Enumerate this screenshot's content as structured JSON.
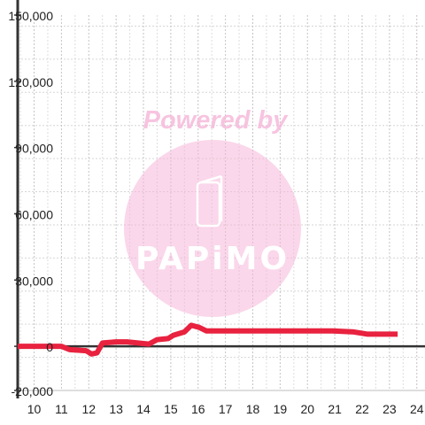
{
  "chart_data": {
    "type": "line",
    "title": "",
    "xlabel": "",
    "ylabel": "",
    "xlim": [
      9.4,
      24.3
    ],
    "ylim": [
      -20000,
      150000
    ],
    "x_ticks": [
      10,
      11,
      12,
      13,
      14,
      15,
      16,
      17,
      18,
      19,
      20,
      21,
      22,
      23,
      24
    ],
    "x_tick_labels": [
      "10",
      "11",
      "12",
      "13",
      "14",
      "15",
      "16",
      "17",
      "18",
      "19",
      "20",
      "21",
      "22",
      "23",
      "24"
    ],
    "y_ticks": [
      -20000,
      0,
      30000,
      60000,
      90000,
      120000,
      150000
    ],
    "y_tick_labels": [
      "-20,000",
      "0",
      "30,000",
      "60,000",
      "90,000",
      "120,000",
      "150,000"
    ],
    "grid": true,
    "legend": "none",
    "series": [
      {
        "color": "#e8223f",
        "points": [
          [
            9.4,
            0
          ],
          [
            11.0,
            0
          ],
          [
            11.3,
            -1500
          ],
          [
            11.9,
            -2000
          ],
          [
            12.1,
            -3500
          ],
          [
            12.3,
            -3000
          ],
          [
            12.5,
            1500
          ],
          [
            13.0,
            2000
          ],
          [
            13.4,
            2000
          ],
          [
            14.2,
            1000
          ],
          [
            14.5,
            3000
          ],
          [
            14.9,
            3500
          ],
          [
            15.1,
            5000
          ],
          [
            15.5,
            6500
          ],
          [
            15.75,
            9500
          ],
          [
            16.05,
            8500
          ],
          [
            16.3,
            7000
          ],
          [
            17.0,
            7000
          ],
          [
            20.9,
            7000
          ],
          [
            21.7,
            6500
          ],
          [
            22.2,
            5500
          ],
          [
            23.3,
            5500
          ]
        ]
      }
    ]
  },
  "watermark": {
    "text": "Powered by",
    "logo": "PAPiMO",
    "icon": "phone-icon",
    "color": "#f6b6d9"
  }
}
